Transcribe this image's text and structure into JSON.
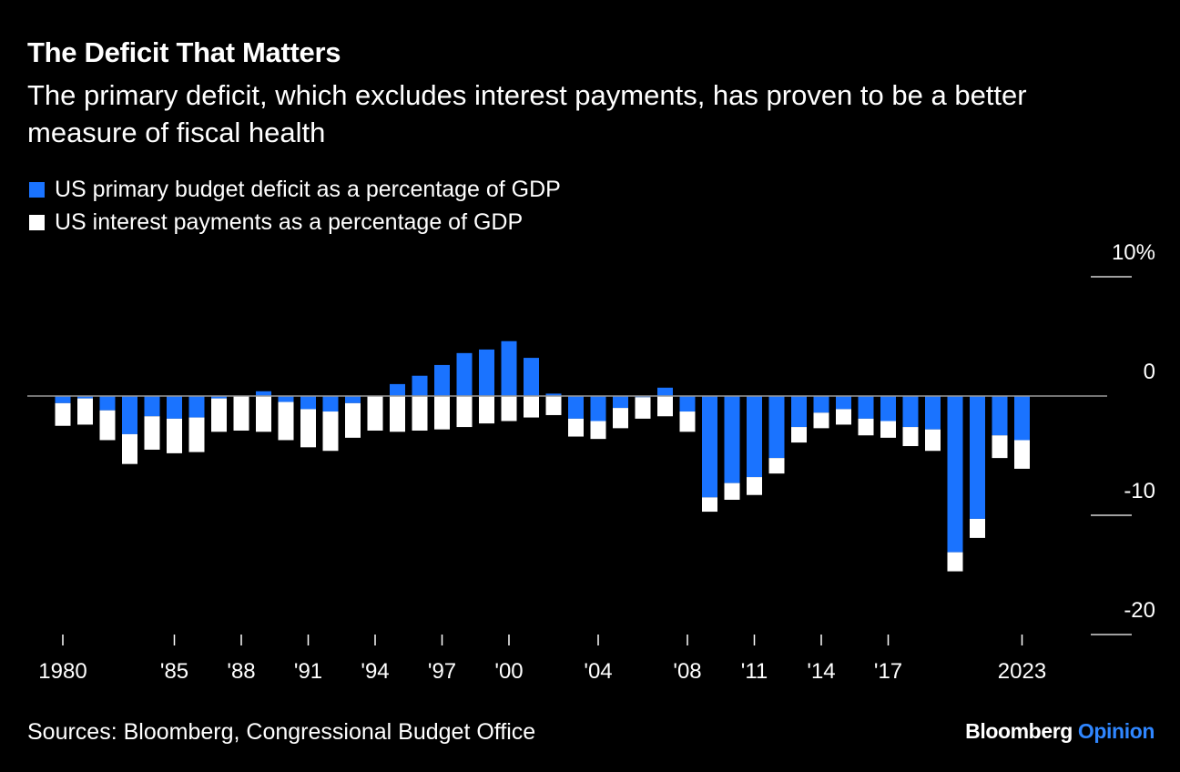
{
  "title": "The Deficit That Matters",
  "subtitle": "The primary deficit, which excludes interest payments, has proven to be a better measure of fiscal health",
  "legend": {
    "primary": "US primary budget deficit as a percentage of GDP",
    "interest": "US interest payments as a percentage of GDP"
  },
  "source": "Sources: Bloomberg, Congressional Budget Office",
  "brand": {
    "name": "Bloomberg",
    "product": "Opinion"
  },
  "colors": {
    "background": "#000000",
    "primary": "#1a73ff",
    "interest": "#ffffff",
    "brand_accent": "#2f86ff"
  },
  "chart_data": {
    "type": "bar",
    "stacked": true,
    "years": [
      1980,
      1981,
      1982,
      1983,
      1984,
      1985,
      1986,
      1987,
      1988,
      1989,
      1990,
      1991,
      1992,
      1993,
      1994,
      1995,
      1996,
      1997,
      1998,
      1999,
      2000,
      2001,
      2002,
      2003,
      2004,
      2005,
      2006,
      2007,
      2008,
      2009,
      2010,
      2011,
      2012,
      2013,
      2014,
      2015,
      2016,
      2017,
      2018,
      2019,
      2020,
      2021,
      2022,
      2023
    ],
    "series": [
      {
        "name": "US primary budget deficit as a percentage of GDP",
        "values": [
          -0.6,
          -0.2,
          -1.2,
          -3.2,
          -1.7,
          -1.9,
          -1.8,
          -0.2,
          0,
          0.4,
          -0.5,
          -1.1,
          -1.3,
          -0.6,
          0,
          1,
          1.7,
          2.6,
          3.6,
          3.9,
          4.6,
          3.2,
          0.2,
          -1.9,
          -2.1,
          -1,
          -0.1,
          0.7,
          -1.3,
          -8.5,
          -7.3,
          -6.8,
          -5.2,
          -2.6,
          -1.4,
          -1.1,
          -1.9,
          -2.1,
          -2.6,
          -2.8,
          -13.1,
          -10.3,
          -3.3,
          -3.7
        ]
      },
      {
        "name": "US interest payments as a percentage of GDP",
        "values": [
          -1.9,
          -2.2,
          -2.5,
          -2.5,
          -2.8,
          -2.9,
          -2.9,
          -2.8,
          -2.9,
          -3,
          -3.2,
          -3.2,
          -3.3,
          -2.9,
          -2.9,
          -3,
          -2.9,
          -2.8,
          -2.6,
          -2.3,
          -2.1,
          -1.8,
          -1.6,
          -1.5,
          -1.5,
          -1.7,
          -1.8,
          -1.7,
          -1.7,
          -1.2,
          -1.4,
          -1.5,
          -1.3,
          -1.3,
          -1.3,
          -1.3,
          -1.4,
          -1.4,
          -1.6,
          -1.8,
          -1.6,
          -1.6,
          -1.9,
          -2.4
        ]
      }
    ],
    "x_tick_labels": [
      {
        "year": 1980,
        "label": "1980"
      },
      {
        "year": 1985,
        "label": "'85"
      },
      {
        "year": 1988,
        "label": "'88"
      },
      {
        "year": 1991,
        "label": "'91"
      },
      {
        "year": 1994,
        "label": "'94"
      },
      {
        "year": 1997,
        "label": "'97"
      },
      {
        "year": 2000,
        "label": "'00"
      },
      {
        "year": 2004,
        "label": "'04"
      },
      {
        "year": 2008,
        "label": "'08"
      },
      {
        "year": 2011,
        "label": "'11"
      },
      {
        "year": 2014,
        "label": "'14"
      },
      {
        "year": 2017,
        "label": "'17"
      },
      {
        "year": 2023,
        "label": "2023"
      }
    ],
    "x_tick_marks": [
      1980,
      1985,
      1988,
      1991,
      1994,
      1997,
      2000,
      2004,
      2008,
      2011,
      2014,
      2017,
      2023
    ],
    "y_ticks": [
      {
        "value": 10,
        "label": "10%"
      },
      {
        "value": 0,
        "label": "0"
      },
      {
        "value": -10,
        "label": "-10"
      },
      {
        "value": -20,
        "label": "-20"
      }
    ],
    "ylim": [
      -20,
      10
    ],
    "axis_side": "right",
    "legend_position": "top-left"
  }
}
